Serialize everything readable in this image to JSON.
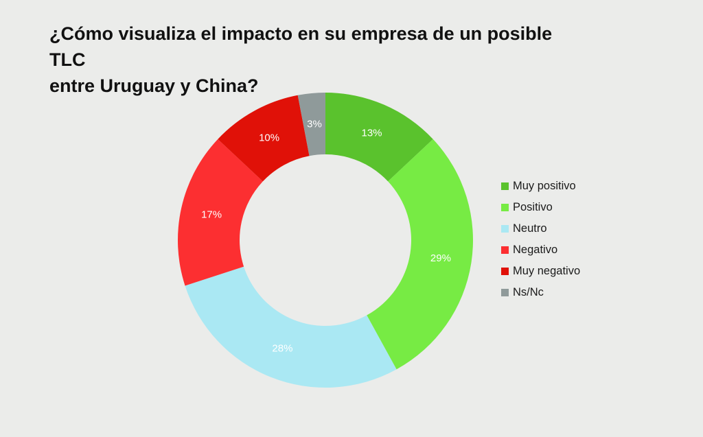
{
  "title_line1": "¿Cómo visualiza el impacto en su empresa de un posible TLC",
  "title_line2": "entre Uruguay y China?",
  "chart_data": {
    "type": "pie",
    "variant": "donut",
    "title": "¿Cómo visualiza el impacto en su empresa de un posible TLC entre Uruguay y China?",
    "legend_position": "right",
    "categories": [
      "Muy positivo",
      "Positivo",
      "Neutro",
      "Negativo",
      "Muy negativo",
      "Ns/Nc"
    ],
    "values": [
      13,
      29,
      28,
      17,
      10,
      3
    ],
    "labels": [
      "13%",
      "29%",
      "28%",
      "17%",
      "10%",
      "3%"
    ],
    "colors": [
      "#5ac22d",
      "#77eb44",
      "#aae8f3",
      "#fc2f31",
      "#e01108",
      "#8f9a9a"
    ],
    "label_colors": [
      "#ffffff",
      "#ffffff",
      "#ffffff",
      "#ffffff",
      "#ffffff",
      "#ffffff"
    ]
  }
}
